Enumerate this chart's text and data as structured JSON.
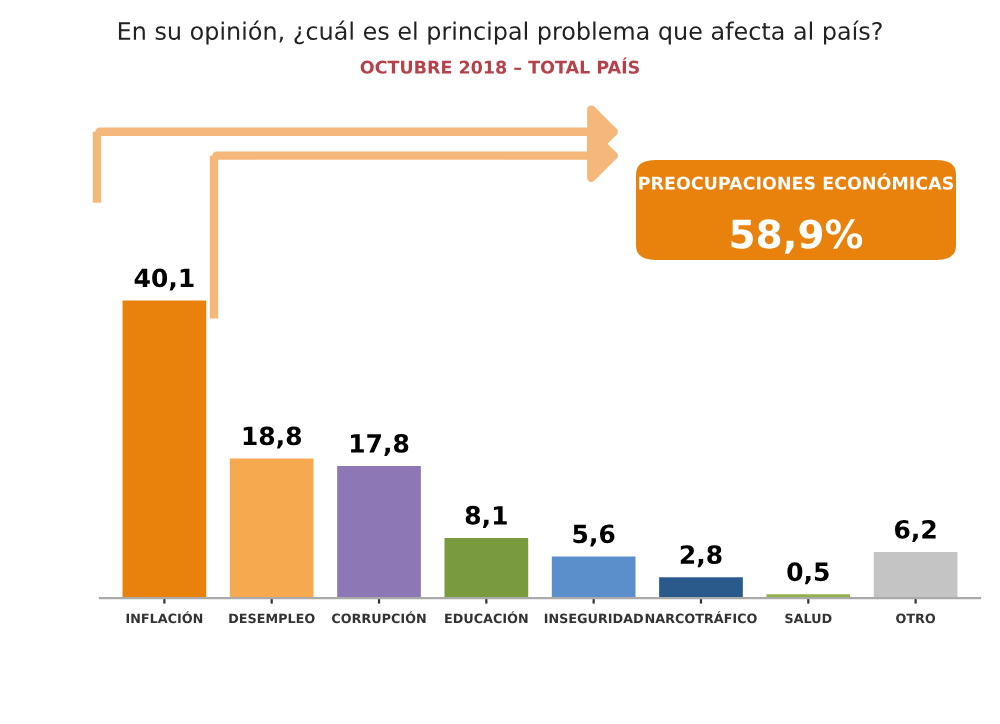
{
  "chart_data": {
    "type": "bar",
    "title": "En su opinión, ¿cuál es el principal problema que afecta al país?",
    "subtitle": "OCTUBRE 2018 – TOTAL PAÍS",
    "categories": [
      "INFLACIÓN",
      "DESEMPLEO",
      "CORRUPCIÓN",
      "EDUCACIÓN",
      "INSEGURIDAD",
      "NARCOTRÁFICO",
      "SALUD",
      "OTRO"
    ],
    "values": [
      40.1,
      18.8,
      17.8,
      8.1,
      5.6,
      2.8,
      0.5,
      6.2
    ],
    "colors": [
      "#e8820c",
      "#f7a94f",
      "#8e77b5",
      "#7a9a3e",
      "#5b8fcc",
      "#2a5a8c",
      "#8fb04a",
      "#c4c4c4"
    ],
    "value_labels": [
      "40,1",
      "18,8",
      "17,8",
      "8,1",
      "5,6",
      "2,8",
      "0,5",
      "6,2"
    ],
    "annotations": [
      "PREOCUPACIONES ECONÓMICAS",
      "58,9%"
    ],
    "grid": false,
    "legend": false
  }
}
